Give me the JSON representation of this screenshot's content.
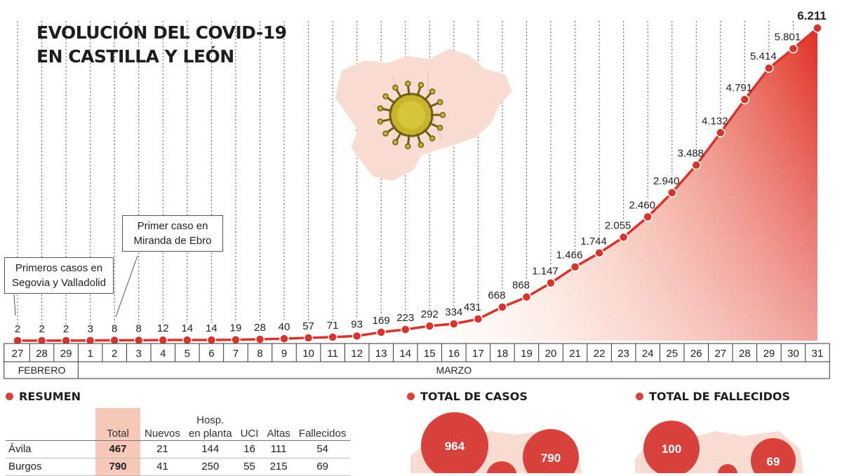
{
  "title": [
    "EVOLUCIÓN DEL COVID-19",
    "EN CASTILLA Y LEÓN"
  ],
  "chart_data": {
    "type": "area",
    "title": "EVOLUCIÓN DEL COVID-19 EN CASTILLA Y LEÓN",
    "days": [
      "27",
      "28",
      "29",
      "1",
      "2",
      "3",
      "4",
      "5",
      "6",
      "7",
      "8",
      "9",
      "10",
      "11",
      "12",
      "13",
      "14",
      "15",
      "16",
      "17",
      "18",
      "19",
      "20",
      "21",
      "22",
      "23",
      "24",
      "25",
      "26",
      "27",
      "28",
      "29",
      "30",
      "31"
    ],
    "values": [
      2,
      2,
      2,
      3,
      8,
      8,
      12,
      14,
      14,
      19,
      28,
      40,
      57,
      71,
      93,
      169,
      223,
      292,
      334,
      431,
      668,
      868,
      1147,
      1466,
      1744,
      2055,
      2460,
      2940,
      3488,
      4132,
      4791,
      5414,
      5801,
      6211
    ],
    "value_labels": [
      "2",
      "2",
      "2",
      "3",
      "8",
      "8",
      "12",
      "14",
      "14",
      "19",
      "28",
      "40",
      "57",
      "71",
      "93",
      "169",
      "223",
      "292",
      "334",
      "431",
      "668",
      "868",
      "1.147",
      "1.466",
      "1.744",
      "2.055",
      "2.460",
      "2.940",
      "3.488",
      "4.132",
      "4.791",
      "5.414",
      "5.801",
      "6.211"
    ],
    "months": [
      {
        "label": "FEBRERO",
        "days": 3
      },
      {
        "label": "MARZO",
        "days": 31
      }
    ],
    "annotations": [
      "Primeros casos en Segovia y Valladolid",
      "Primer caso en Miranda de Ebro"
    ],
    "ylim": [
      0,
      6211
    ],
    "grid": "vertical dotted",
    "colors": {
      "line": "#d9342b",
      "fill_top": "#e23a2e",
      "fill_bottom": "#ffffff",
      "map": "#f9dcd2",
      "virus": "#c9b42a"
    }
  },
  "annotations": {
    "first": [
      "Primeros casos en",
      "Segovia y Valladolid"
    ],
    "second": [
      "Primer caso en",
      "Miranda de Ebro"
    ]
  },
  "sections": {
    "resumen": "RESUMEN",
    "total_casos": "TOTAL DE CASOS",
    "total_fallecidos": "TOTAL DE FALLECIDOS"
  },
  "resumen_table": {
    "headers": {
      "total": "Total",
      "nuevos": "Nuevos",
      "hosp_1": "Hosp.",
      "hosp_2": "en planta",
      "uci": "UCI",
      "altas": "Altas",
      "fallecidos": "Fallecidos"
    },
    "rows": [
      {
        "provincia": "Ávila",
        "total": "467",
        "nuevos": "21",
        "hosp": "144",
        "uci": "16",
        "altas": "111",
        "fallecidos": "54"
      },
      {
        "provincia": "Burgos",
        "total": "790",
        "nuevos": "41",
        "hosp": "250",
        "uci": "55",
        "altas": "215",
        "fallecidos": "69"
      }
    ]
  },
  "map_casos": {
    "bubble_1": "964",
    "bubble_2": "790"
  },
  "map_fallecidos": {
    "bubble_1": "100",
    "bubble_2": "69"
  }
}
